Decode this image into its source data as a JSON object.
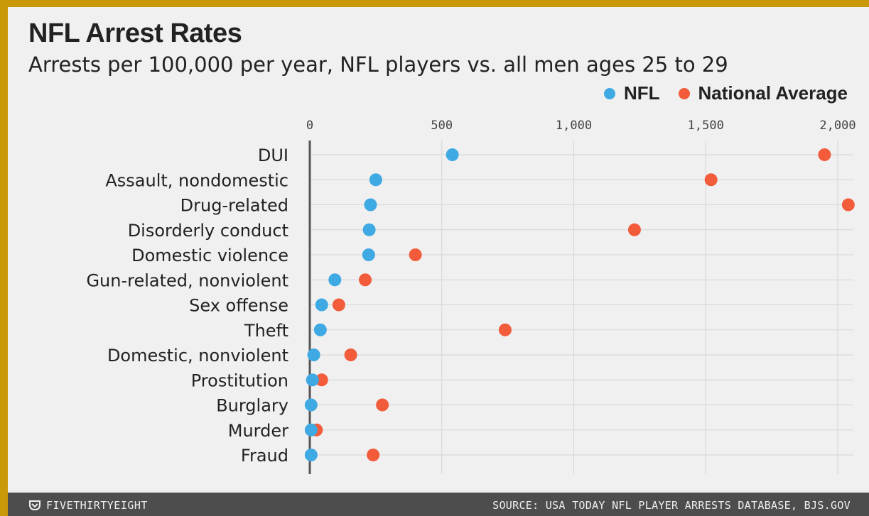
{
  "chart_data": {
    "type": "scatter",
    "title": "NFL Arrest Rates",
    "subtitle": "Arrests per 100,000 per year, NFL players vs. all men ages 25 to 29",
    "xlim": [
      0,
      2050
    ],
    "x_ticks": [
      0,
      500,
      1000,
      1500,
      2000
    ],
    "x_tick_labels": [
      "0",
      "500",
      "1,000",
      "1,500",
      "2,000"
    ],
    "grid": true,
    "legend_position": "top-right",
    "categories": [
      "DUI",
      "Assault, nondomestic",
      "Drug-related",
      "Disorderly conduct",
      "Domestic violence",
      "Gun-related, nonviolent",
      "Sex offense",
      "Theft",
      "Domestic, nonviolent",
      "Prostitution",
      "Burglary",
      "Murder",
      "Fraud"
    ],
    "series": [
      {
        "name": "NFL",
        "color": "#3ea9e2",
        "values": [
          540,
          250,
          230,
          225,
          223,
          95,
          45,
          40,
          15,
          10,
          5,
          5,
          5
        ]
      },
      {
        "name": "National Average",
        "color": "#f25c3a",
        "values": [
          1950,
          1520,
          2040,
          1230,
          400,
          210,
          110,
          740,
          155,
          45,
          275,
          25,
          240
        ]
      }
    ]
  },
  "footer": {
    "brand": "FIVETHIRTYEIGHT",
    "source": "SOURCE: USA TODAY NFL PLAYER ARRESTS DATABASE, BJS.GOV"
  }
}
